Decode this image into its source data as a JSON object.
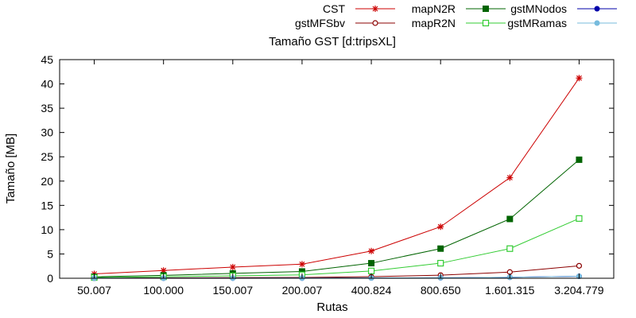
{
  "chart_data": {
    "type": "line",
    "title": "Tamaño GST [d:tripsXL]",
    "xlabel": "Rutas",
    "ylabel": "Tamaño [MB]",
    "categories": [
      "50.007",
      "100.000",
      "150.007",
      "200.007",
      "400.824",
      "800.650",
      "1.601.315",
      "3.204.779"
    ],
    "ylim": [
      0,
      45
    ],
    "yticks": [
      0,
      5,
      10,
      15,
      20,
      25,
      30,
      35,
      40,
      45
    ],
    "grid": false,
    "legend_position": "top",
    "series": [
      {
        "name": "CST",
        "color": "#cc0000",
        "marker": "star",
        "values": [
          0.9,
          1.6,
          2.3,
          2.9,
          5.6,
          10.6,
          20.7,
          41.2
        ]
      },
      {
        "name": "gstMFSbv",
        "color": "#8b0000",
        "marker": "open-circle",
        "values": [
          0.04,
          0.08,
          0.12,
          0.16,
          0.32,
          0.64,
          1.27,
          2.56
        ]
      },
      {
        "name": "mapN2R",
        "color": "#006400",
        "marker": "filled-square",
        "values": [
          0.3,
          0.6,
          1.0,
          1.4,
          3.1,
          6.1,
          12.2,
          24.4
        ]
      },
      {
        "name": "mapR2N",
        "color": "#33cc33",
        "marker": "open-square",
        "values": [
          0.15,
          0.3,
          0.5,
          0.7,
          1.5,
          3.1,
          6.1,
          12.3
        ]
      },
      {
        "name": "gstMNodos",
        "color": "#0000aa",
        "marker": "filled-circle",
        "values": [
          0.01,
          0.02,
          0.03,
          0.04,
          0.06,
          0.1,
          0.2,
          0.4
        ]
      },
      {
        "name": "gstMRamas",
        "color": "#77bbdd",
        "marker": "filled-circle",
        "values": [
          0.01,
          0.02,
          0.03,
          0.04,
          0.06,
          0.1,
          0.2,
          0.4
        ]
      }
    ]
  }
}
